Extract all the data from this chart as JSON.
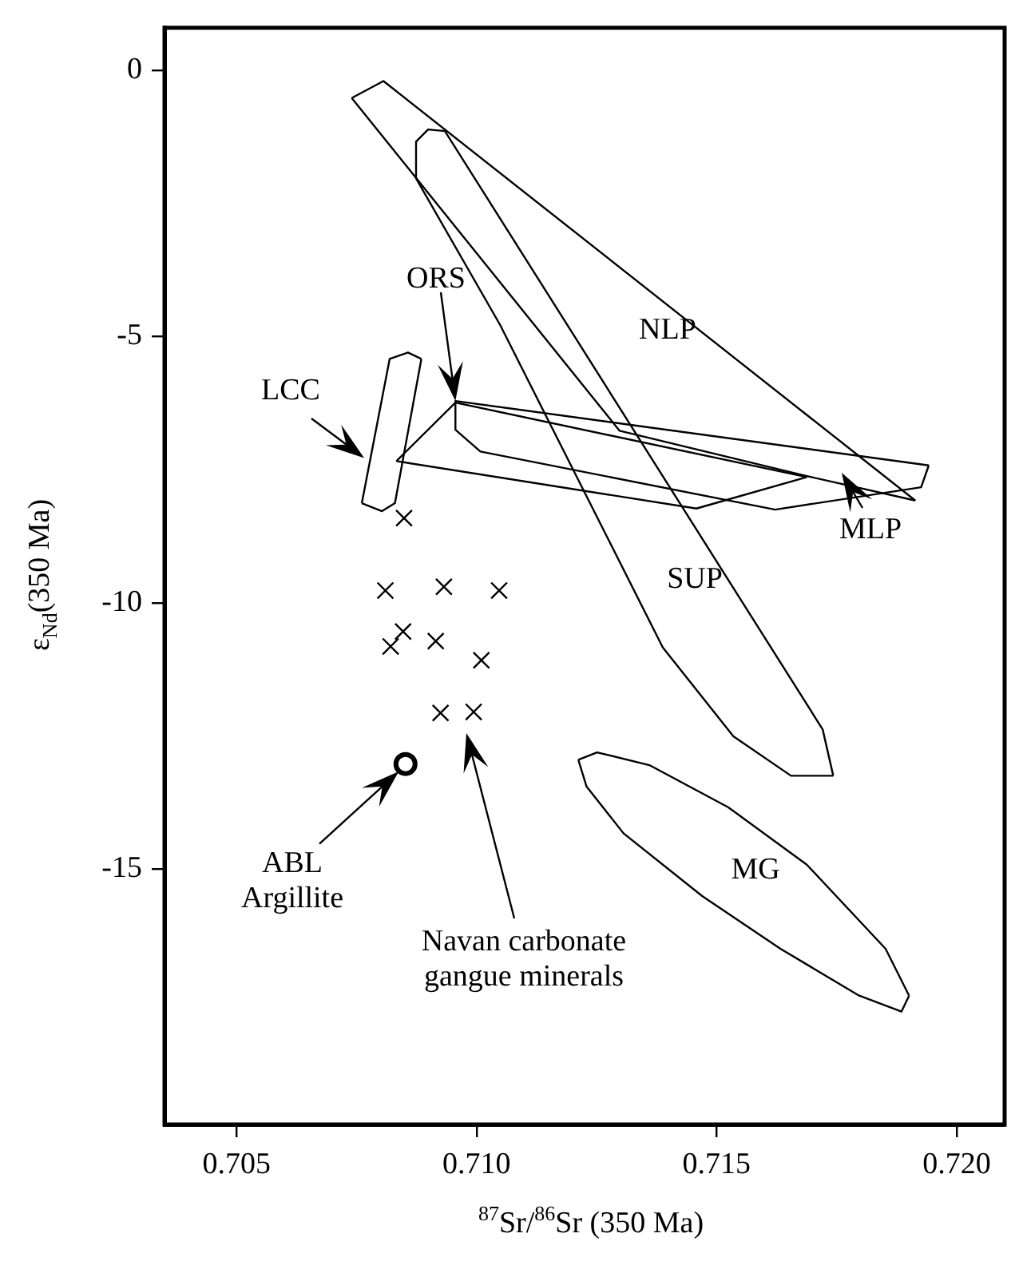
{
  "chart_data": {
    "type": "scatter",
    "xlabel": "$^{87}$Sr/$^{86}$Sr (350 Ma)",
    "ylabel": "ε$_{Nd}$(350 Ma)",
    "xlim": [
      0.7035,
      0.721
    ],
    "ylim": [
      -19.8,
      0.8
    ],
    "xticks": [
      0.705,
      {
        "value": 0.71,
        "label": "0.710"
      },
      0.715,
      {
        "value": 0.72,
        "label": "0.720"
      }
    ],
    "yticks": [
      0,
      -5,
      -10,
      -15
    ],
    "grid": false,
    "legend": false,
    "series": [
      {
        "type": "line",
        "marker": "none",
        "color": "#000000",
        "x": [
          0.7074,
          0.70806,
          0.71914
        ],
        "values": [
          -0.52,
          -0.2,
          -8.08
        ]
      },
      {
        "type": "line",
        "marker": "none",
        "color": "#000000",
        "x": [
          0.7074,
          0.71298,
          0.71688,
          0.71914
        ],
        "values": [
          -0.52,
          -6.77,
          -7.62,
          -8.08
        ]
      },
      {
        "type": "line",
        "marker": "none",
        "color": "#000000",
        "x": [
          0.70956,
          0.71942
        ],
        "values": [
          -6.21,
          -7.42
        ]
      },
      {
        "type": "line",
        "marker": "none",
        "color": "#000000",
        "x": [
          0.70956,
          0.70956,
          0.71008,
          0.71622,
          0.71926,
          0.71942
        ],
        "values": [
          -6.21,
          -6.75,
          -7.16,
          -8.25,
          -7.83,
          -7.42
        ]
      },
      {
        "type": "line",
        "marker": "none",
        "color": "#000000",
        "x": [
          0.70833,
          0.70956,
          0.71688
        ],
        "values": [
          -7.34,
          -6.24,
          -7.64
        ]
      },
      {
        "type": "line",
        "marker": "none",
        "color": "#000000",
        "x": [
          0.70833,
          0.71458,
          0.71688
        ],
        "values": [
          -7.34,
          -8.23,
          -7.64
        ]
      },
      {
        "type": "line",
        "marker": "none",
        "color": "#000000",
        "x": [
          0.70874,
          0.70899,
          0.70934,
          0.71721,
          0.71743
        ],
        "values": [
          -1.34,
          -1.11,
          -1.14,
          -12.38,
          -13.25
        ]
      },
      {
        "type": "line",
        "marker": "none",
        "color": "#000000",
        "x": [
          0.70874,
          0.70874,
          0.71049,
          0.71388,
          0.71535,
          0.71655,
          0.71743
        ],
        "values": [
          -1.34,
          -2.03,
          -4.78,
          -10.84,
          -12.51,
          -13.25,
          -13.25
        ]
      },
      {
        "type": "line",
        "marker": "none",
        "color": "#000000",
        "x": [
          0.70761,
          0.70819,
          0.70857,
          0.70885
        ],
        "values": [
          -8.13,
          -5.42,
          -5.3,
          -5.42
        ]
      },
      {
        "type": "line",
        "marker": "none",
        "color": "#000000",
        "x": [
          0.70761,
          0.70803,
          0.7083,
          0.70885
        ],
        "values": [
          -8.13,
          -8.28,
          -8.13,
          -5.42
        ]
      },
      {
        "type": "line",
        "marker": "none",
        "color": "#000000",
        "x": [
          0.71212,
          0.71251,
          0.7136,
          0.71524,
          0.71688,
          0.71852,
          0.71901
        ],
        "values": [
          -12.95,
          -12.81,
          -13.05,
          -13.84,
          -14.92,
          -16.5,
          -17.38
        ]
      },
      {
        "type": "line",
        "marker": "none",
        "color": "#000000",
        "x": [
          0.71212,
          0.71229,
          0.71306,
          0.7147,
          0.71633,
          0.71797,
          0.71885,
          0.71901
        ],
        "values": [
          -12.95,
          -13.45,
          -14.33,
          -15.51,
          -16.5,
          -17.38,
          -17.68,
          -17.38
        ]
      },
      {
        "marker": "cross",
        "color": "#000000",
        "x": [
          0.70849,
          0.7081,
          0.70932,
          0.71047,
          0.70847,
          0.70821,
          0.70915,
          0.7101,
          0.70925,
          0.70994
        ],
        "values": [
          -8.41,
          -9.77,
          -9.7,
          -9.77,
          -10.54,
          -10.82,
          -10.72,
          -11.08,
          -12.07,
          -12.05
        ]
      },
      {
        "marker": "circle",
        "color": "#000000",
        "x": [
          0.70852
        ],
        "values": [
          -13.03
        ]
      }
    ],
    "annotations": [
      "NLP",
      {
        "text": "ORS",
        "x": 0.70956,
        "y": -6.21
      },
      {
        "text": "LCC",
        "x": 0.70766,
        "y": -7.28
      },
      "MLP",
      "SUP",
      "MG",
      {
        "text": "ABL\nArgillite",
        "x": 0.70838,
        "y": -13.16
      },
      "Navan carbonate\ngangue minerals"
    ]
  }
}
